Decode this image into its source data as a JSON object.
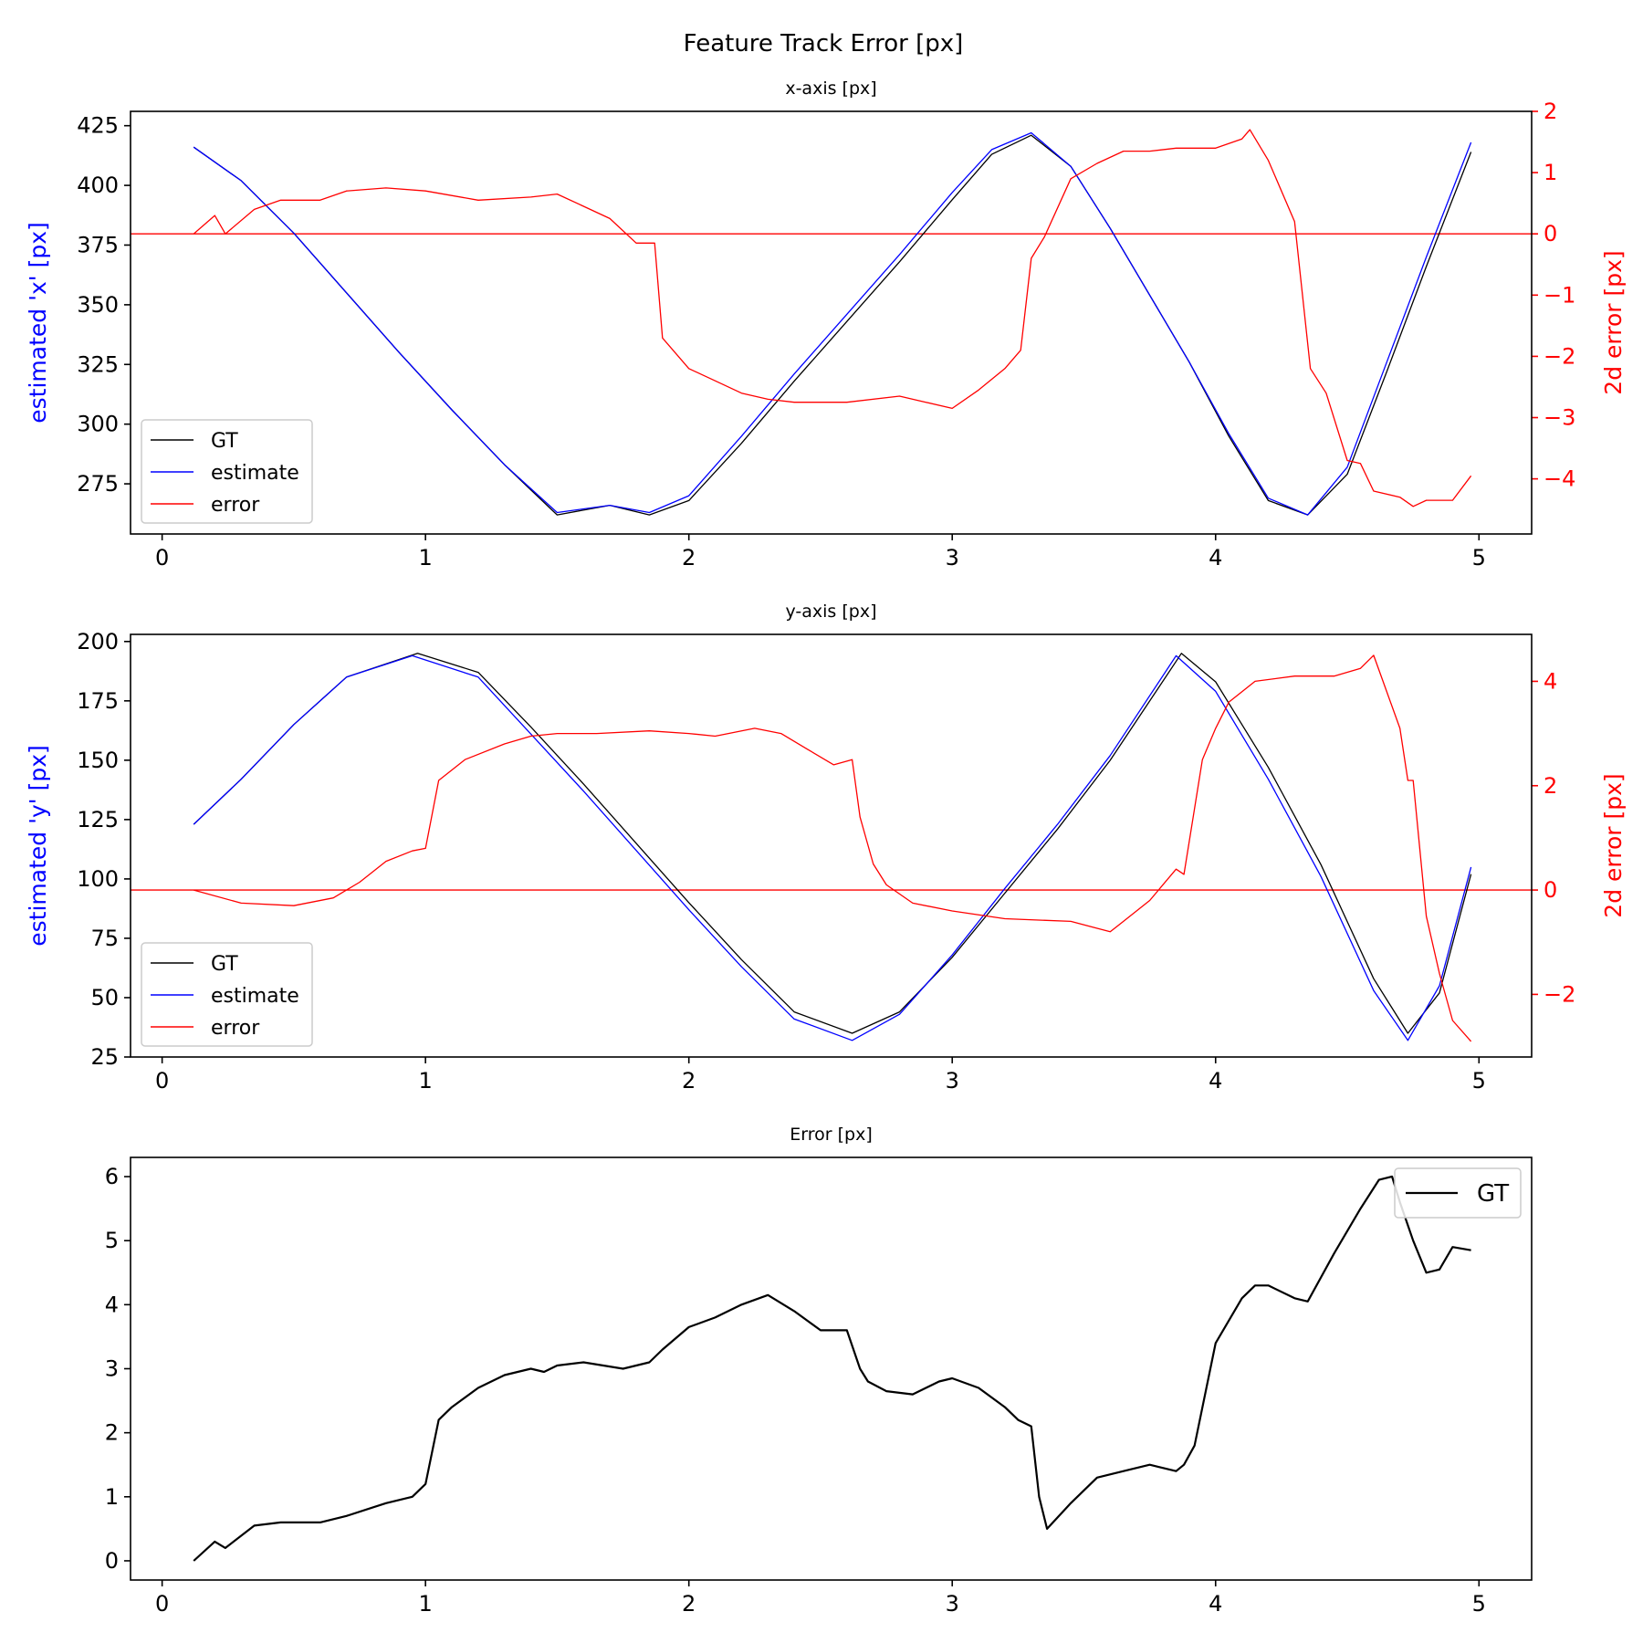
{
  "figure": {
    "suptitle": "Feature Track Error [px]"
  },
  "chart_data": [
    {
      "type": "line",
      "title": "x-axis [px]",
      "ylabel": "estimated 'x' [px]",
      "y2label": "2d error [px]",
      "xlim": [
        -0.12,
        5.2
      ],
      "ylim": [
        254,
        431
      ],
      "y2lim": [
        -4.9,
        2.0
      ],
      "xticks": [
        0,
        1,
        2,
        3,
        4,
        5
      ],
      "yticks": [
        275,
        300,
        325,
        350,
        375,
        400,
        425
      ],
      "y2ticks": [
        -4,
        -3,
        -2,
        -1,
        0,
        1,
        2
      ],
      "y2ticklabels": [
        "−4",
        "−3",
        "−2",
        "−1",
        "0",
        "1",
        "2"
      ],
      "axis_colors": {
        "left": "#0000ff",
        "right": "#ff0000"
      },
      "legend": {
        "position": "lower-left",
        "entries": [
          {
            "label": "GT",
            "color": "#000000"
          },
          {
            "label": "estimate",
            "color": "#0000ff"
          },
          {
            "label": "error",
            "color": "#ff0000"
          }
        ]
      },
      "series": [
        {
          "name": "GT",
          "color": "#000000",
          "axis": "left",
          "x": [
            0.12,
            0.3,
            0.5,
            0.7,
            0.9,
            1.1,
            1.3,
            1.5,
            1.7,
            1.85,
            2.0,
            2.2,
            2.4,
            2.6,
            2.8,
            3.0,
            3.15,
            3.3,
            3.45,
            3.6,
            3.75,
            3.9,
            4.05,
            4.2,
            4.35,
            4.5,
            4.65,
            4.8,
            4.97
          ],
          "y": [
            416,
            402,
            380,
            355,
            330,
            306,
            283,
            262,
            266,
            262,
            268,
            292,
            318,
            343,
            368,
            394,
            413,
            421,
            408,
            382,
            354,
            326,
            295,
            268,
            262,
            279,
            322,
            366,
            414
          ]
        },
        {
          "name": "estimate",
          "color": "#0000ff",
          "axis": "left",
          "x": [
            0.12,
            0.3,
            0.5,
            0.7,
            0.9,
            1.1,
            1.3,
            1.5,
            1.7,
            1.85,
            2.0,
            2.2,
            2.4,
            2.6,
            2.8,
            3.0,
            3.15,
            3.3,
            3.45,
            3.6,
            3.75,
            3.9,
            4.05,
            4.2,
            4.35,
            4.5,
            4.65,
            4.8,
            4.97
          ],
          "y": [
            416,
            402,
            380,
            355,
            330,
            306,
            283,
            263,
            266,
            263,
            270,
            295,
            321,
            346,
            371,
            397,
            415,
            422,
            408,
            382,
            354,
            326,
            296,
            269,
            262,
            282,
            326,
            370,
            418
          ]
        },
        {
          "name": "error",
          "color": "#ff0000",
          "axis": "right",
          "x": [
            0.12,
            0.2,
            0.24,
            0.35,
            0.45,
            0.6,
            0.7,
            0.85,
            1.0,
            1.2,
            1.4,
            1.5,
            1.6,
            1.7,
            1.8,
            1.87,
            1.9,
            2.0,
            2.1,
            2.2,
            2.3,
            2.4,
            2.6,
            2.8,
            2.9,
            3.0,
            3.1,
            3.2,
            3.26,
            3.3,
            3.35,
            3.45,
            3.55,
            3.65,
            3.75,
            3.85,
            4.0,
            4.1,
            4.13,
            4.2,
            4.3,
            4.36,
            4.42,
            4.5,
            4.55,
            4.6,
            4.7,
            4.75,
            4.8,
            4.9,
            4.97
          ],
          "y": [
            0.0,
            0.3,
            0.0,
            0.4,
            0.55,
            0.55,
            0.7,
            0.75,
            0.7,
            0.55,
            0.6,
            0.65,
            0.45,
            0.25,
            -0.15,
            -0.15,
            -1.7,
            -2.2,
            -2.4,
            -2.6,
            -2.7,
            -2.75,
            -2.75,
            -2.65,
            -2.75,
            -2.85,
            -2.55,
            -2.2,
            -1.9,
            -0.4,
            -0.05,
            0.9,
            1.15,
            1.35,
            1.35,
            1.4,
            1.4,
            1.55,
            1.7,
            1.2,
            0.2,
            -2.2,
            -2.6,
            -3.7,
            -3.75,
            -4.2,
            -4.3,
            -4.45,
            -4.35,
            -4.35,
            -3.95
          ]
        }
      ]
    },
    {
      "type": "line",
      "title": "y-axis [px]",
      "ylabel": "estimated 'y' [px]",
      "y2label": "2d error [px]",
      "xlim": [
        -0.12,
        5.2
      ],
      "ylim": [
        25,
        203
      ],
      "y2lim": [
        -3.2,
        4.9
      ],
      "xticks": [
        0,
        1,
        2,
        3,
        4,
        5
      ],
      "yticks": [
        25,
        50,
        75,
        100,
        125,
        150,
        175,
        200
      ],
      "y2ticks": [
        -2,
        0,
        2,
        4
      ],
      "y2ticklabels": [
        "−2",
        "0",
        "2",
        "4"
      ],
      "axis_colors": {
        "left": "#0000ff",
        "right": "#ff0000"
      },
      "legend": {
        "position": "lower-left",
        "entries": [
          {
            "label": "GT",
            "color": "#000000"
          },
          {
            "label": "estimate",
            "color": "#0000ff"
          },
          {
            "label": "error",
            "color": "#ff0000"
          }
        ]
      },
      "series": [
        {
          "name": "GT",
          "color": "#000000",
          "axis": "left",
          "x": [
            0.12,
            0.3,
            0.5,
            0.7,
            0.97,
            1.2,
            1.4,
            1.6,
            1.8,
            2.0,
            2.2,
            2.4,
            2.62,
            2.8,
            3.0,
            3.2,
            3.4,
            3.6,
            3.87,
            4.0,
            4.2,
            4.4,
            4.6,
            4.73,
            4.85,
            4.97
          ],
          "y": [
            123,
            142,
            165,
            185,
            195,
            187,
            164,
            140,
            115,
            90,
            66,
            44,
            35,
            44,
            67,
            94,
            121,
            150,
            195,
            183,
            147,
            106,
            58,
            35,
            52,
            102
          ]
        },
        {
          "name": "estimate",
          "color": "#0000ff",
          "axis": "left",
          "x": [
            0.12,
            0.3,
            0.5,
            0.7,
            0.95,
            1.2,
            1.4,
            1.6,
            1.8,
            2.0,
            2.2,
            2.4,
            2.62,
            2.8,
            3.0,
            3.2,
            3.4,
            3.6,
            3.85,
            4.0,
            4.2,
            4.4,
            4.6,
            4.73,
            4.85,
            4.97
          ],
          "y": [
            123,
            142,
            165,
            185,
            194,
            185,
            161,
            137,
            112,
            87,
            63,
            41,
            32,
            43,
            68,
            96,
            123,
            152,
            194,
            179,
            142,
            101,
            53,
            32,
            55,
            105
          ]
        },
        {
          "name": "error",
          "color": "#ff0000",
          "axis": "right",
          "x": [
            0.12,
            0.3,
            0.5,
            0.65,
            0.75,
            0.85,
            0.95,
            1.0,
            1.05,
            1.15,
            1.3,
            1.4,
            1.5,
            1.65,
            1.85,
            2.0,
            2.1,
            2.25,
            2.35,
            2.45,
            2.55,
            2.62,
            2.65,
            2.7,
            2.75,
            2.85,
            3.0,
            3.2,
            3.45,
            3.6,
            3.65,
            3.75,
            3.85,
            3.88,
            3.95,
            4.0,
            4.05,
            4.15,
            4.3,
            4.45,
            4.55,
            4.6,
            4.65,
            4.7,
            4.73,
            4.75,
            4.8,
            4.85,
            4.9,
            4.97
          ],
          "y": [
            0.0,
            -0.25,
            -0.3,
            -0.15,
            0.15,
            0.55,
            0.75,
            0.8,
            2.1,
            2.5,
            2.8,
            2.95,
            3.0,
            3.0,
            3.05,
            3.0,
            2.95,
            3.1,
            3.0,
            2.7,
            2.4,
            2.5,
            1.4,
            0.5,
            0.1,
            -0.25,
            -0.4,
            -0.55,
            -0.6,
            -0.8,
            -0.6,
            -0.2,
            0.4,
            0.3,
            2.5,
            3.1,
            3.6,
            4.0,
            4.1,
            4.1,
            4.25,
            4.5,
            3.8,
            3.1,
            2.1,
            2.1,
            -0.5,
            -1.6,
            -2.5,
            -2.9
          ]
        }
      ]
    },
    {
      "type": "line",
      "title": "Error [px]",
      "xlim": [
        -0.12,
        5.2
      ],
      "ylim": [
        -0.3,
        6.3
      ],
      "xticks": [
        0,
        1,
        2,
        3,
        4,
        5
      ],
      "yticks": [
        0,
        1,
        2,
        3,
        4,
        5,
        6
      ],
      "legend": {
        "position": "upper-right",
        "entries": [
          {
            "label": "GT",
            "color": "#000000"
          }
        ]
      },
      "series": [
        {
          "name": "GT",
          "color": "#000000",
          "x": [
            0.12,
            0.2,
            0.24,
            0.35,
            0.45,
            0.6,
            0.7,
            0.85,
            0.95,
            1.0,
            1.05,
            1.1,
            1.2,
            1.3,
            1.4,
            1.45,
            1.5,
            1.6,
            1.75,
            1.85,
            1.9,
            2.0,
            2.1,
            2.2,
            2.3,
            2.4,
            2.5,
            2.55,
            2.6,
            2.65,
            2.68,
            2.75,
            2.85,
            2.95,
            3.0,
            3.1,
            3.2,
            3.25,
            3.3,
            3.33,
            3.36,
            3.45,
            3.55,
            3.65,
            3.75,
            3.85,
            3.88,
            3.92,
            4.0,
            4.1,
            4.15,
            4.2,
            4.3,
            4.35,
            4.45,
            4.55,
            4.62,
            4.67,
            4.7,
            4.75,
            4.8,
            4.85,
            4.9,
            4.97
          ],
          "y": [
            0.0,
            0.3,
            0.2,
            0.55,
            0.6,
            0.6,
            0.7,
            0.9,
            1.0,
            1.2,
            2.2,
            2.4,
            2.7,
            2.9,
            3.0,
            2.95,
            3.05,
            3.1,
            3.0,
            3.1,
            3.3,
            3.65,
            3.8,
            4.0,
            4.15,
            3.9,
            3.6,
            3.6,
            3.6,
            3.0,
            2.8,
            2.65,
            2.6,
            2.8,
            2.85,
            2.7,
            2.4,
            2.2,
            2.1,
            1.0,
            0.5,
            0.9,
            1.3,
            1.4,
            1.5,
            1.4,
            1.5,
            1.8,
            3.4,
            4.1,
            4.3,
            4.3,
            4.1,
            4.05,
            4.8,
            5.5,
            5.95,
            6.0,
            5.6,
            5.0,
            4.5,
            4.55,
            4.9,
            4.85
          ]
        }
      ]
    }
  ]
}
